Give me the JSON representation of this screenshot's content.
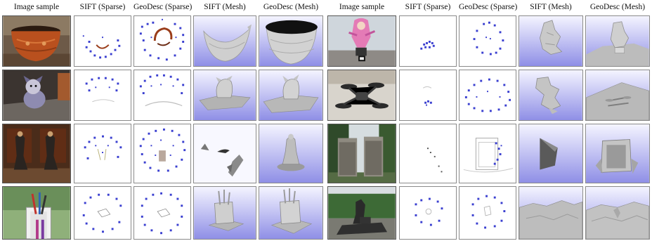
{
  "figure": {
    "headers_left": [
      "Image sample",
      "SIFT (Sparse)",
      "GeoDesc (Sparse)",
      "SIFT (Mesh)",
      "GeoDesc (Mesh)"
    ],
    "headers_right": [
      "Image sample",
      "SIFT (Sparse)",
      "GeoDesc (Sparse)",
      "SIFT (Mesh)",
      "GeoDesc (Mesh)"
    ]
  },
  "colors": {
    "camera_blue": "#3a3fd0",
    "mesh_bg_top": "#f4f4ff",
    "mesh_bg_bottom": "#8f8fe6",
    "mesh_gray": "#c9c9c9"
  }
}
